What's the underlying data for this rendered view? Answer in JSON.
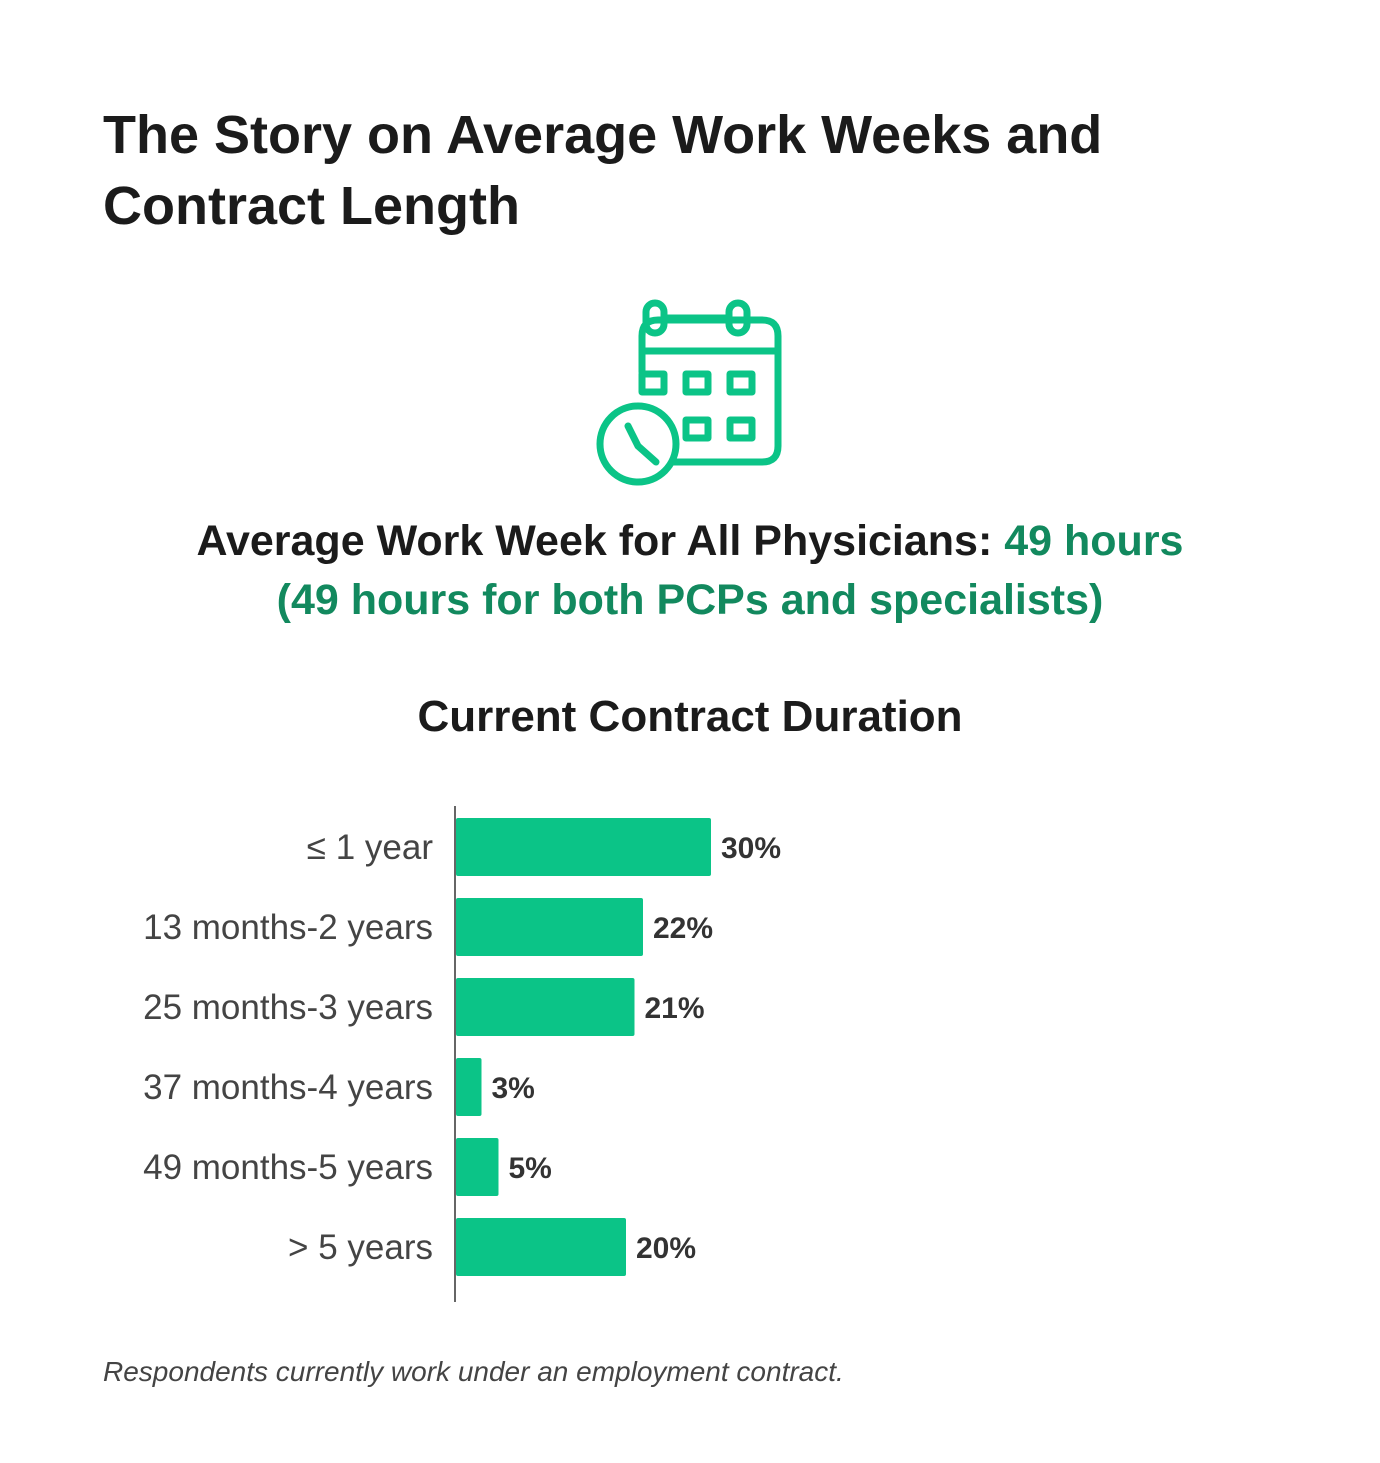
{
  "title": "The Story on Average Work Weeks and Contract Length",
  "stat": {
    "label": "Average Work Week for All Physicians:",
    "value": "49 hours",
    "detail": "(49 hours for both PCPs and specialists)"
  },
  "icon": "calendar-clock-icon",
  "colors": {
    "accent": "#0BC487",
    "highlight_text": "#12895E",
    "text": "#1B1B1B"
  },
  "chart_data": {
    "type": "bar",
    "orientation": "horizontal",
    "title": "Current Contract Duration",
    "categories": [
      "≤ 1 year",
      "13 months-2 years",
      "25 months-3 years",
      "37 months-4 years",
      "49 months-5 years",
      "> 5 years"
    ],
    "values": [
      30,
      22,
      21,
      3,
      5,
      20
    ],
    "value_labels": [
      "30%",
      "22%",
      "21%",
      "3%",
      "5%",
      "20%"
    ],
    "unit": "%",
    "xlim": [
      0,
      100
    ],
    "grid": false,
    "legend": "none"
  },
  "footnote": "Respondents currently work under an employment contract."
}
